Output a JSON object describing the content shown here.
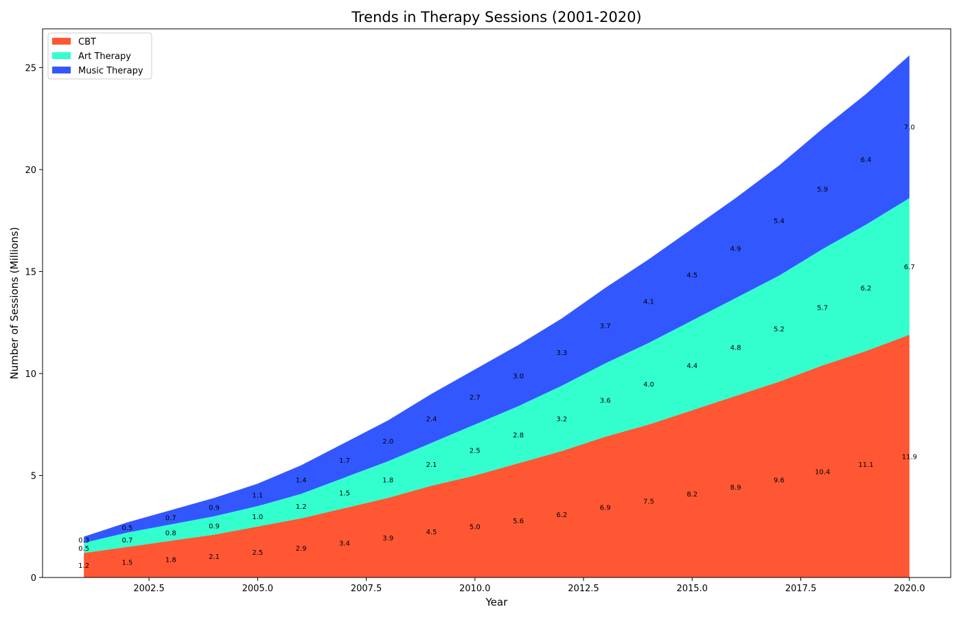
{
  "chart_data": {
    "type": "area",
    "stacked": true,
    "title": "Trends in Therapy Sessions (2001-2020)",
    "xlabel": "Year",
    "ylabel": "Number of Sessions (Millions)",
    "x": [
      2001,
      2002,
      2003,
      2004,
      2005,
      2006,
      2007,
      2008,
      2009,
      2010,
      2011,
      2012,
      2013,
      2014,
      2015,
      2016,
      2017,
      2018,
      2019,
      2020
    ],
    "series": [
      {
        "name": "CBT",
        "color": "#ff5733",
        "values": [
          1.2,
          1.5,
          1.8,
          2.1,
          2.5,
          2.9,
          3.4,
          3.9,
          4.5,
          5.0,
          5.6,
          6.2,
          6.9,
          7.5,
          8.2,
          8.9,
          9.6,
          10.4,
          11.1,
          11.9
        ]
      },
      {
        "name": "Art Therapy",
        "color": "#33ffce",
        "values": [
          0.5,
          0.7,
          0.8,
          0.9,
          1.0,
          1.2,
          1.5,
          1.8,
          2.1,
          2.5,
          2.8,
          3.2,
          3.6,
          4.0,
          4.4,
          4.8,
          5.2,
          5.7,
          6.2,
          6.7
        ]
      },
      {
        "name": "Music Therapy",
        "color": "#3357ff",
        "values": [
          0.3,
          0.5,
          0.7,
          0.9,
          1.1,
          1.4,
          1.7,
          2.0,
          2.4,
          2.7,
          3.0,
          3.3,
          3.7,
          4.1,
          4.5,
          4.9,
          5.4,
          5.9,
          6.4,
          7.0
        ]
      }
    ],
    "xlim": [
      2000.05,
      2020.95
    ],
    "ylim": [
      0,
      26.9
    ],
    "xticks": [
      2002.5,
      2005.0,
      2007.5,
      2010.0,
      2012.5,
      2015.0,
      2017.5,
      2020.0
    ],
    "xtick_labels": [
      "2002.5",
      "2005.0",
      "2007.5",
      "2010.0",
      "2012.5",
      "2015.0",
      "2017.5",
      "2020.0"
    ],
    "yticks": [
      0,
      5,
      10,
      15,
      20,
      25
    ],
    "ytick_labels": [
      "0",
      "5",
      "10",
      "15",
      "20",
      "25"
    ],
    "legend_position": "upper-left",
    "grid": false
  }
}
